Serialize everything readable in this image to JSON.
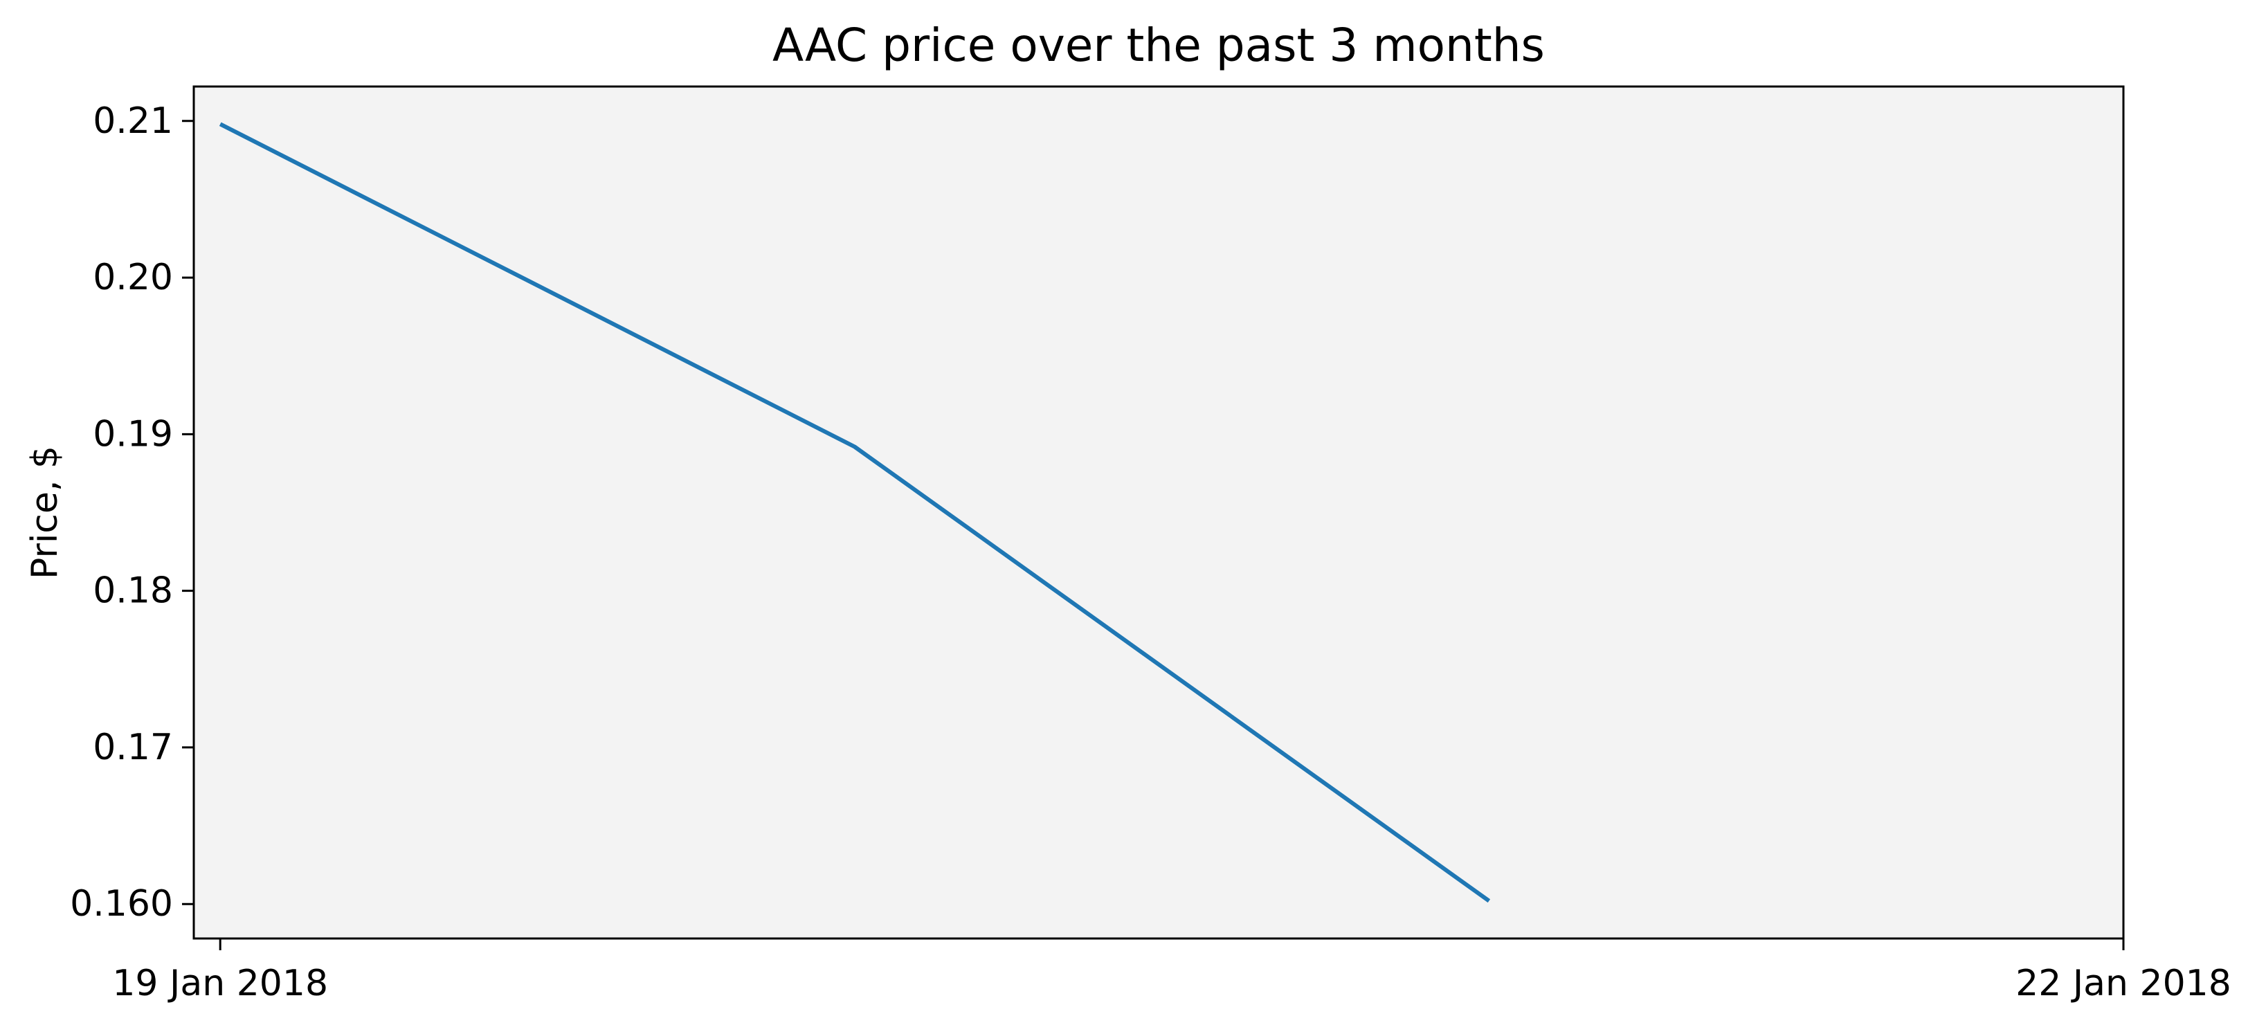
{
  "chart_data": {
    "type": "line",
    "title": "AAC price over the past 3 months",
    "xlabel": "",
    "ylabel": "Price, $",
    "x": [
      "2018-01-19",
      "2018-01-20",
      "2018-01-21"
    ],
    "series": [
      {
        "values": [
          0.2098,
          0.1892,
          0.1602
        ]
      }
    ],
    "x_ticks": [
      {
        "date": "2018-01-19",
        "label": "19 Jan 2018"
      },
      {
        "date": "2018-01-22",
        "label": "22 Jan 2018"
      }
    ],
    "xlim": [
      "2018-01-18T23:00",
      "2018-01-22T00:00"
    ],
    "y_ticks": [
      {
        "value": 0.16,
        "label": "0.160"
      },
      {
        "value": 0.17,
        "label": "0.17"
      },
      {
        "value": 0.18,
        "label": "0.18"
      },
      {
        "value": 0.19,
        "label": "0.19"
      },
      {
        "value": 0.2,
        "label": "0.20"
      },
      {
        "value": 0.21,
        "label": "0.21"
      }
    ],
    "ylim": [
      0.1578,
      0.2122
    ],
    "grid": false,
    "legend": "none",
    "colors": {
      "line": "#1f77b4",
      "plot_background": "#f3f3f3",
      "axis": "#000000"
    }
  }
}
